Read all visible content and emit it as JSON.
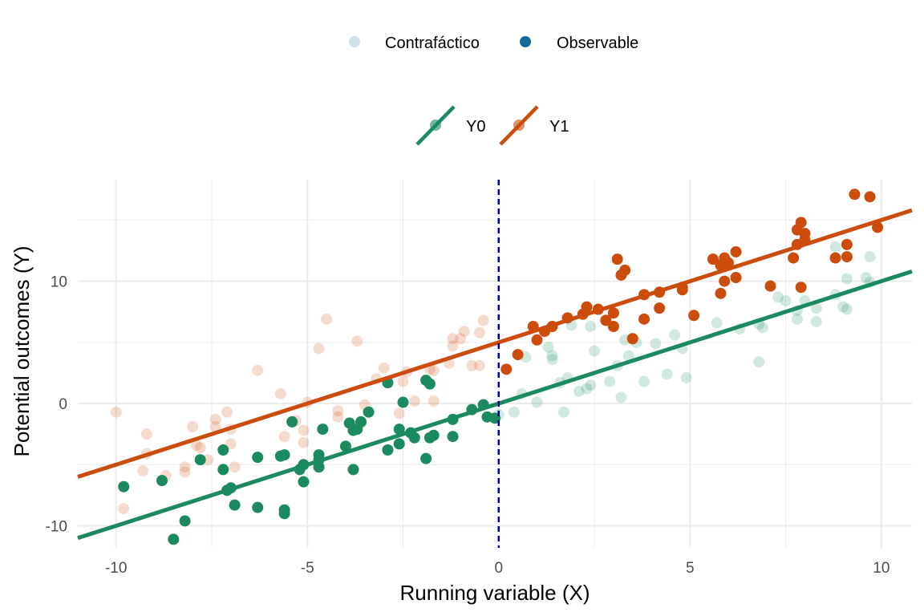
{
  "colors": {
    "y0": "#1b8a5f",
    "y1": "#cc4c0c",
    "observable": "#116d93",
    "counterfactual": "#b9d8e6",
    "cutoff": "#00008b",
    "grid": "#ebebeb"
  },
  "legend_status": {
    "items": [
      {
        "label": "Contrafáctico",
        "alpha": 0.2
      },
      {
        "label": "Observable",
        "alpha": 1.0
      }
    ]
  },
  "legend_outcome": {
    "items": [
      {
        "label": "Y0"
      },
      {
        "label": "Y1"
      }
    ]
  },
  "chart_data": {
    "type": "scatter",
    "xlabel": "Running variable (X)",
    "ylabel": "Potential outcomes (Y)",
    "xlim": [
      -11,
      10.8
    ],
    "ylim": [
      -11.8,
      18.3
    ],
    "x_ticks": [
      -10,
      -5,
      0,
      5,
      10
    ],
    "x_tick_labels": [
      "-10",
      "-5",
      "0",
      "5",
      "10"
    ],
    "y_ticks": [
      -10,
      0,
      10
    ],
    "y_tick_labels": [
      "-10",
      "0",
      "10"
    ],
    "grid": true,
    "cutoff_x": 0,
    "lines": [
      {
        "name": "Y0",
        "slope": 1.0,
        "intercept": 0.0
      },
      {
        "name": "Y1",
        "slope": 1.0,
        "intercept": 5.0
      }
    ],
    "series": [
      {
        "name": "Y0",
        "status": "Observable",
        "points": [
          [
            -9.8,
            -6.8
          ],
          [
            -8.8,
            -6.3
          ],
          [
            -8.5,
            -11.1
          ],
          [
            -8.2,
            -9.6
          ],
          [
            -7.8,
            -4.6
          ],
          [
            -7.2,
            -3.8
          ],
          [
            -7.2,
            -5.4
          ],
          [
            -7.1,
            -7.1
          ],
          [
            -7.0,
            -6.9
          ],
          [
            -6.9,
            -8.3
          ],
          [
            -6.3,
            -4.4
          ],
          [
            -6.3,
            -8.5
          ],
          [
            -5.7,
            -4.3
          ],
          [
            -5.6,
            -4.2
          ],
          [
            -5.6,
            -8.7
          ],
          [
            -5.6,
            -9.0
          ],
          [
            -5.4,
            -1.5
          ],
          [
            -5.2,
            -5.4
          ],
          [
            -5.1,
            -5.0
          ],
          [
            -5.1,
            -6.4
          ],
          [
            -4.7,
            -4.2
          ],
          [
            -4.7,
            -5.2
          ],
          [
            -4.7,
            -4.6
          ],
          [
            -4.6,
            -2.1
          ],
          [
            -4.0,
            -3.5
          ],
          [
            -3.9,
            -1.6
          ],
          [
            -3.8,
            -2.2
          ],
          [
            -3.8,
            -5.4
          ],
          [
            -3.7,
            -2.1
          ],
          [
            -3.6,
            -1.5
          ],
          [
            -3.4,
            -0.7
          ],
          [
            -2.9,
            -3.8
          ],
          [
            -2.9,
            1.7
          ],
          [
            -2.6,
            -3.3
          ],
          [
            -2.6,
            -2.1
          ],
          [
            -2.5,
            0.1
          ],
          [
            -2.3,
            -2.4
          ],
          [
            -2.2,
            -2.8
          ],
          [
            -1.9,
            -4.5
          ],
          [
            -1.8,
            -2.8
          ],
          [
            -1.9,
            1.9
          ],
          [
            -1.8,
            1.6
          ],
          [
            -1.7,
            -2.6
          ],
          [
            -1.2,
            -2.7
          ],
          [
            -1.2,
            -1.3
          ],
          [
            -0.7,
            -0.5
          ],
          [
            -0.4,
            -0.1
          ],
          [
            -0.3,
            -1.1
          ],
          [
            -0.1,
            -1.2
          ]
        ]
      },
      {
        "name": "Y0",
        "status": "Contrafáctico",
        "points": [
          [
            0.0,
            -0.9
          ],
          [
            0.4,
            -0.7
          ],
          [
            0.6,
            0.8
          ],
          [
            0.7,
            3.8
          ],
          [
            1.0,
            0.1
          ],
          [
            1.3,
            4.6
          ],
          [
            1.4,
            3.6
          ],
          [
            1.4,
            3.9
          ],
          [
            1.6,
            1.7
          ],
          [
            1.7,
            -0.7
          ],
          [
            1.8,
            2.1
          ],
          [
            1.9,
            6.4
          ],
          [
            2.1,
            1.0
          ],
          [
            2.3,
            1.2
          ],
          [
            2.4,
            1.5
          ],
          [
            2.4,
            6.3
          ],
          [
            2.5,
            4.3
          ],
          [
            2.9,
            1.8
          ],
          [
            3.1,
            3.1
          ],
          [
            3.2,
            0.5
          ],
          [
            3.3,
            5.2
          ],
          [
            3.4,
            3.9
          ],
          [
            3.6,
            5.0
          ],
          [
            3.8,
            1.8
          ],
          [
            4.1,
            4.9
          ],
          [
            4.4,
            2.4
          ],
          [
            4.6,
            5.6
          ],
          [
            4.8,
            4.5
          ],
          [
            4.9,
            2.1
          ],
          [
            5.7,
            6.6
          ],
          [
            6.3,
            6.1
          ],
          [
            6.8,
            3.4
          ],
          [
            6.8,
            6.5
          ],
          [
            6.9,
            6.2
          ],
          [
            7.3,
            8.7
          ],
          [
            7.5,
            8.4
          ],
          [
            7.8,
            6.9
          ],
          [
            7.8,
            7.6
          ],
          [
            8.0,
            8.4
          ],
          [
            8.3,
            6.7
          ],
          [
            8.3,
            7.8
          ],
          [
            8.8,
            8.9
          ],
          [
            8.8,
            12.8
          ],
          [
            9.0,
            7.9
          ],
          [
            9.1,
            7.7
          ],
          [
            9.1,
            10.2
          ],
          [
            9.6,
            10.3
          ],
          [
            9.7,
            12.0
          ],
          [
            9.7,
            9.9
          ]
        ]
      },
      {
        "name": "Y1",
        "status": "Contrafáctico",
        "points": [
          [
            -10.0,
            -0.7
          ],
          [
            -9.8,
            -8.6
          ],
          [
            -9.3,
            -5.5
          ],
          [
            -9.2,
            -2.5
          ],
          [
            -9.2,
            -4.1
          ],
          [
            -8.7,
            -5.9
          ],
          [
            -8.2,
            -5.6
          ],
          [
            -8.2,
            -5.2
          ],
          [
            -8.0,
            -1.9
          ],
          [
            -7.9,
            -3.4
          ],
          [
            -7.8,
            -3.6
          ],
          [
            -7.6,
            -4.6
          ],
          [
            -7.4,
            -1.3
          ],
          [
            -7.4,
            -1.9
          ],
          [
            -7.1,
            -0.7
          ],
          [
            -7.0,
            -3.3
          ],
          [
            -7.0,
            -2.1
          ],
          [
            -6.9,
            -5.2
          ],
          [
            -6.3,
            2.7
          ],
          [
            -5.7,
            0.8
          ],
          [
            -5.6,
            -2.7
          ],
          [
            -5.3,
            -1.4
          ],
          [
            -5.1,
            -3.2
          ],
          [
            -5.1,
            -2.2
          ],
          [
            -5.0,
            0.1
          ],
          [
            -4.7,
            4.5
          ],
          [
            -4.5,
            6.9
          ],
          [
            -4.2,
            -0.6
          ],
          [
            -4.2,
            -1.1
          ],
          [
            -3.7,
            5.1
          ],
          [
            -3.6,
            -1.6
          ],
          [
            -3.5,
            -0.1
          ],
          [
            -3.2,
            2.0
          ],
          [
            -3.0,
            2.9
          ],
          [
            -2.6,
            -0.8
          ],
          [
            -2.5,
            1.8
          ],
          [
            -2.4,
            2.6
          ],
          [
            -2.2,
            0.2
          ],
          [
            -1.8,
            2.8
          ],
          [
            -1.7,
            2.7
          ],
          [
            -1.7,
            0.2
          ],
          [
            -1.3,
            3.3
          ],
          [
            -1.2,
            5.3
          ],
          [
            -1.2,
            4.7
          ],
          [
            -1.0,
            5.3
          ],
          [
            -0.9,
            5.9
          ],
          [
            -0.7,
            3.1
          ],
          [
            -0.5,
            5.8
          ],
          [
            -0.5,
            3.1
          ],
          [
            -0.4,
            6.8
          ]
        ]
      },
      {
        "name": "Y1",
        "status": "Observable",
        "points": [
          [
            0.2,
            2.8
          ],
          [
            0.5,
            4.0
          ],
          [
            0.9,
            6.3
          ],
          [
            1.0,
            5.2
          ],
          [
            1.2,
            5.9
          ],
          [
            1.4,
            6.3
          ],
          [
            1.8,
            7.0
          ],
          [
            2.2,
            7.3
          ],
          [
            2.3,
            7.9
          ],
          [
            2.6,
            7.7
          ],
          [
            2.8,
            6.8
          ],
          [
            3.0,
            7.4
          ],
          [
            3.0,
            6.3
          ],
          [
            3.1,
            11.8
          ],
          [
            3.2,
            10.5
          ],
          [
            3.3,
            10.9
          ],
          [
            3.5,
            5.3
          ],
          [
            3.8,
            8.9
          ],
          [
            3.8,
            6.9
          ],
          [
            4.2,
            9.1
          ],
          [
            4.2,
            7.8
          ],
          [
            4.8,
            9.5
          ],
          [
            4.8,
            9.3
          ],
          [
            5.1,
            7.2
          ],
          [
            5.6,
            11.8
          ],
          [
            5.8,
            11.3
          ],
          [
            5.8,
            9.0
          ],
          [
            5.9,
            11.9
          ],
          [
            5.9,
            10.0
          ],
          [
            6.0,
            11.5
          ],
          [
            6.2,
            10.3
          ],
          [
            6.2,
            12.4
          ],
          [
            7.1,
            9.6
          ],
          [
            7.7,
            11.9
          ],
          [
            7.8,
            14.2
          ],
          [
            7.8,
            13.0
          ],
          [
            7.9,
            14.8
          ],
          [
            7.9,
            9.5
          ],
          [
            8.0,
            13.4
          ],
          [
            8.0,
            13.9
          ],
          [
            8.8,
            11.9
          ],
          [
            9.1,
            12.0
          ],
          [
            9.1,
            13.0
          ],
          [
            9.3,
            17.1
          ],
          [
            9.7,
            16.9
          ],
          [
            9.9,
            14.4
          ]
        ]
      }
    ]
  }
}
